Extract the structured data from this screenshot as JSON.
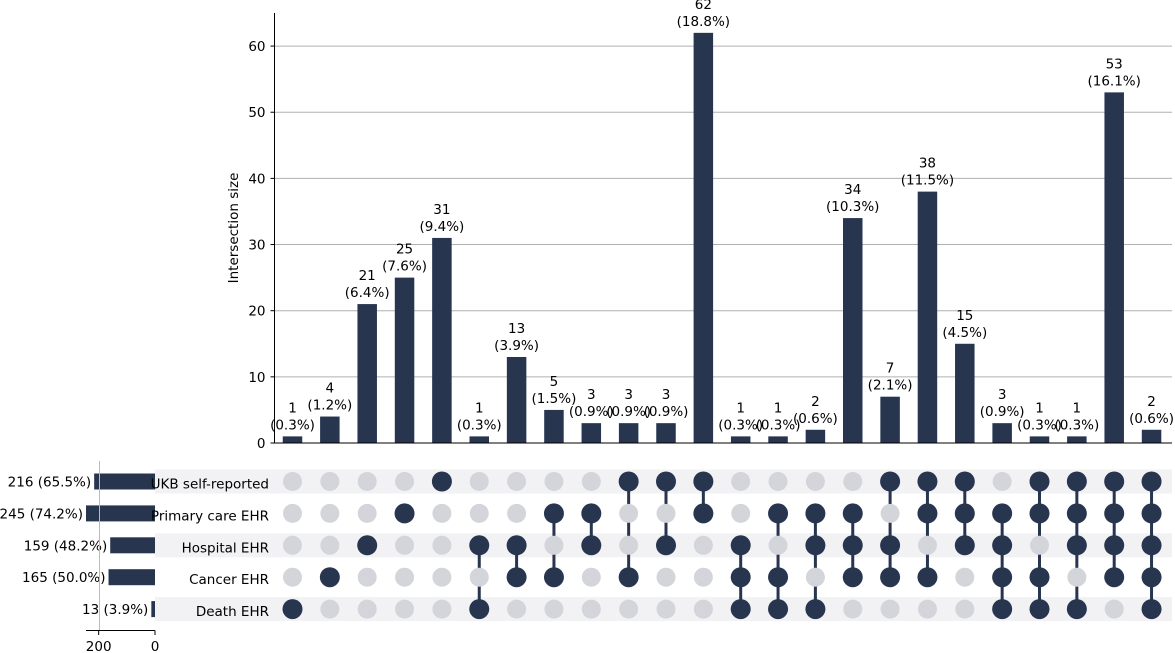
{
  "chart_data": {
    "type": "bar",
    "chart_kind": "upset",
    "ylabel": "Intersection size",
    "ylim": [
      0,
      65
    ],
    "y_ticks": [
      "0",
      "10",
      "20",
      "30",
      "40",
      "50",
      "60"
    ],
    "grid": true,
    "bar_color": "#27354f",
    "dot_inactive_color": "#d3d5da",
    "stripe_color": "#f2f2f4",
    "sets": [
      {
        "name": "UKB self-reported",
        "size": 216,
        "size_label": "216 (65.5%)"
      },
      {
        "name": "Primary care EHR",
        "size": 245,
        "size_label": "245 (74.2%)"
      },
      {
        "name": "Hospital EHR",
        "size": 159,
        "size_label": "159 (48.2%)"
      },
      {
        "name": "Cancer EHR",
        "size": 165,
        "size_label": "165 (50.0%)"
      },
      {
        "name": "Death EHR",
        "size": 13,
        "size_label": "13 (3.9%)"
      }
    ],
    "set_size_ticks": [
      {
        "value": 200,
        "label": "200"
      },
      {
        "value": 0,
        "label": "0"
      }
    ],
    "set_size_max": 245,
    "intersections": [
      {
        "value": 1,
        "count_label": "1",
        "pct_label": "(0.3%)",
        "members": [
          0,
          0,
          0,
          0,
          1
        ]
      },
      {
        "value": 4,
        "count_label": "4",
        "pct_label": "(1.2%)",
        "members": [
          0,
          0,
          0,
          1,
          0
        ]
      },
      {
        "value": 21,
        "count_label": "21",
        "pct_label": "(6.4%)",
        "members": [
          0,
          0,
          1,
          0,
          0
        ]
      },
      {
        "value": 25,
        "count_label": "25",
        "pct_label": "(7.6%)",
        "members": [
          0,
          1,
          0,
          0,
          0
        ]
      },
      {
        "value": 31,
        "count_label": "31",
        "pct_label": "(9.4%)",
        "members": [
          1,
          0,
          0,
          0,
          0
        ]
      },
      {
        "value": 1,
        "count_label": "1",
        "pct_label": "(0.3%)",
        "members": [
          0,
          0,
          1,
          0,
          1
        ]
      },
      {
        "value": 13,
        "count_label": "13",
        "pct_label": "(3.9%)",
        "members": [
          0,
          0,
          1,
          1,
          0
        ]
      },
      {
        "value": 5,
        "count_label": "5",
        "pct_label": "(1.5%)",
        "members": [
          0,
          1,
          0,
          1,
          0
        ]
      },
      {
        "value": 3,
        "count_label": "3",
        "pct_label": "(0.9%)",
        "members": [
          0,
          1,
          1,
          0,
          0
        ]
      },
      {
        "value": 3,
        "count_label": "3",
        "pct_label": "(0.9%)",
        "members": [
          1,
          0,
          0,
          1,
          0
        ]
      },
      {
        "value": 3,
        "count_label": "3",
        "pct_label": "(0.9%)",
        "members": [
          1,
          0,
          1,
          0,
          0
        ]
      },
      {
        "value": 62,
        "count_label": "62",
        "pct_label": "(18.8%)",
        "members": [
          1,
          1,
          0,
          0,
          0
        ]
      },
      {
        "value": 1,
        "count_label": "1",
        "pct_label": "(0.3%)",
        "members": [
          0,
          0,
          1,
          1,
          1
        ]
      },
      {
        "value": 1,
        "count_label": "1",
        "pct_label": "(0.3%)",
        "members": [
          0,
          1,
          0,
          1,
          1
        ]
      },
      {
        "value": 2,
        "count_label": "2",
        "pct_label": "(0.6%)",
        "members": [
          0,
          1,
          1,
          0,
          1
        ]
      },
      {
        "value": 34,
        "count_label": "34",
        "pct_label": "(10.3%)",
        "members": [
          0,
          1,
          1,
          1,
          0
        ]
      },
      {
        "value": 7,
        "count_label": "7",
        "pct_label": "(2.1%)",
        "members": [
          1,
          0,
          1,
          1,
          0
        ]
      },
      {
        "value": 38,
        "count_label": "38",
        "pct_label": "(11.5%)",
        "members": [
          1,
          1,
          0,
          1,
          0
        ]
      },
      {
        "value": 15,
        "count_label": "15",
        "pct_label": "(4.5%)",
        "members": [
          1,
          1,
          1,
          0,
          0
        ]
      },
      {
        "value": 3,
        "count_label": "3",
        "pct_label": "(0.9%)",
        "members": [
          0,
          1,
          1,
          1,
          1
        ]
      },
      {
        "value": 1,
        "count_label": "1",
        "pct_label": "(0.3%)",
        "members": [
          1,
          1,
          0,
          1,
          1
        ]
      },
      {
        "value": 1,
        "count_label": "1",
        "pct_label": "(0.3%)",
        "members": [
          1,
          1,
          1,
          0,
          1
        ]
      },
      {
        "value": 53,
        "count_label": "53",
        "pct_label": "(16.1%)",
        "members": [
          1,
          1,
          1,
          1,
          0
        ]
      },
      {
        "value": 2,
        "count_label": "2",
        "pct_label": "(0.6%)",
        "members": [
          1,
          1,
          1,
          1,
          1
        ]
      }
    ]
  }
}
